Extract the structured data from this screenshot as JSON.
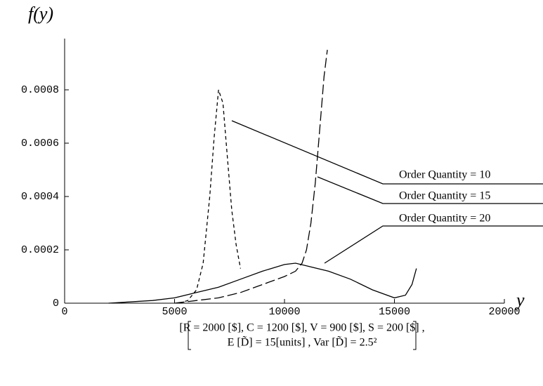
{
  "chart_data": {
    "type": "line",
    "y_label": "f(y)",
    "x_label": "y",
    "xlim": [
      0,
      20000
    ],
    "xticks": [
      0,
      5000,
      10000,
      15000,
      20000
    ],
    "ylim": [
      0,
      0.00105
    ],
    "yticks": [
      0,
      0.0002,
      0.0004,
      0.0006,
      0.0008
    ],
    "grid": false,
    "series": [
      {
        "name": "Order Quantity = 10",
        "color": "#000000",
        "dash": "short",
        "x": [
          5200,
          5600,
          6000,
          6300,
          6600,
          6800,
          7000,
          7200,
          7400,
          7600,
          7800,
          8000
        ],
        "values": [
          0,
          1e-05,
          5e-05,
          0.00015,
          0.0004,
          0.00062,
          0.0008,
          0.00075,
          0.00055,
          0.00035,
          0.00022,
          0.00013
        ]
      },
      {
        "name": "Order Quantity = 15",
        "color": "#000000",
        "dash": "long",
        "x": [
          5000,
          6000,
          7000,
          8000,
          9000,
          10000,
          10500,
          10800,
          11000,
          11200,
          11400,
          11600,
          11800,
          11950
        ],
        "values": [
          0,
          1e-05,
          2e-05,
          4e-05,
          7e-05,
          0.0001,
          0.00012,
          0.00015,
          0.0002,
          0.0003,
          0.00045,
          0.00065,
          0.00085,
          0.00095
        ]
      },
      {
        "name": "Order Quantity = 20",
        "color": "#000000",
        "dash": "solid",
        "x": [
          2000,
          4000,
          5000,
          6000,
          7000,
          8000,
          9000,
          10000,
          10500,
          11000,
          12000,
          13000,
          14000,
          15000,
          15500,
          15800,
          16000
        ],
        "values": [
          0,
          1e-05,
          2e-05,
          4e-05,
          6e-05,
          9e-05,
          0.00012,
          0.000145,
          0.00015,
          0.00014,
          0.00012,
          9e-05,
          5e-05,
          2e-05,
          3e-05,
          7e-05,
          0.00013
        ]
      }
    ],
    "caption": [
      "[R = 2000 [$], C = 1200 [$], V = 900 [$], S = 200 [$] ,",
      "E [D̃] = 15[units] , Var [D̃] = 2.5²"
    ]
  }
}
